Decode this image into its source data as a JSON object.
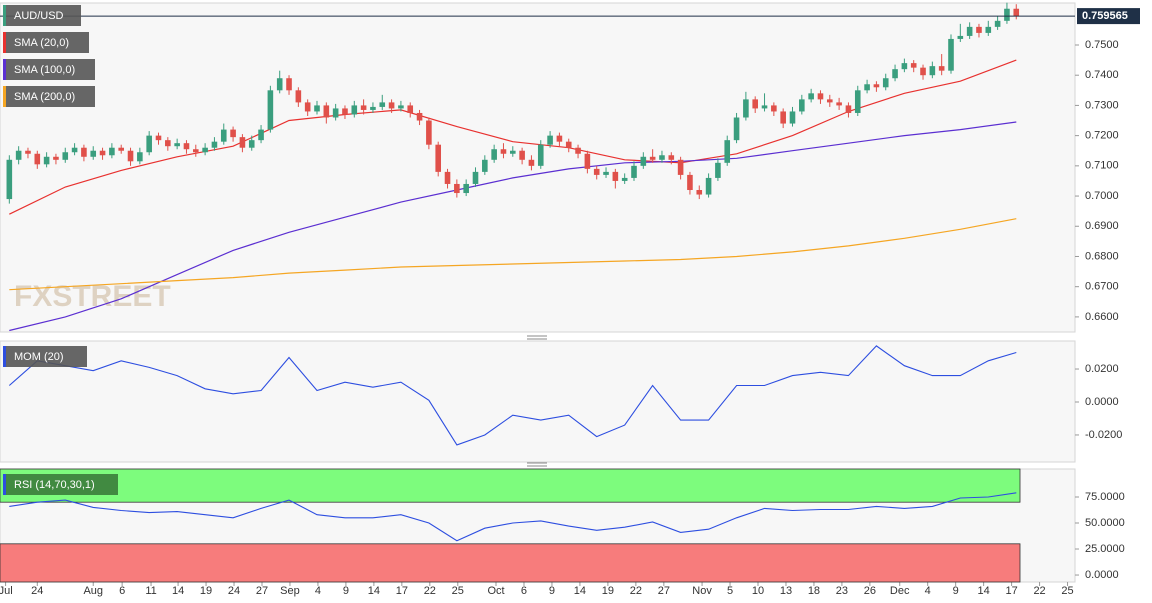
{
  "chart_data": {
    "type": "candlestick",
    "symbol": "AUD/USD",
    "watermark": "FXSTREET",
    "up_color": "#3a9e7e",
    "down_color": "#e0504a",
    "open": [
      0.699,
      0.712,
      0.715,
      0.714,
      0.7105,
      0.713,
      0.712,
      0.7145,
      0.716,
      0.713,
      0.715,
      0.7135,
      0.716,
      0.715,
      0.7115,
      0.7145,
      0.72,
      0.7185,
      0.7165,
      0.7175,
      0.7155,
      0.7145,
      0.716,
      0.718,
      0.722,
      0.7195,
      0.716,
      0.7185,
      0.722,
      0.735,
      0.739,
      0.735,
      0.731,
      0.728,
      0.73,
      0.726,
      0.729,
      0.727,
      0.73,
      0.7285,
      0.7295,
      0.731,
      0.729,
      0.73,
      0.7275,
      0.725,
      0.717,
      0.708,
      0.704,
      0.701,
      0.704,
      0.708,
      0.712,
      0.7155,
      0.714,
      0.715,
      0.712,
      0.71,
      0.717,
      0.72,
      0.718,
      0.716,
      0.714,
      0.709,
      0.707,
      0.708,
      0.705,
      0.706,
      0.71,
      0.713,
      0.712,
      0.7135,
      0.712,
      0.707,
      0.702,
      0.7005,
      0.706,
      0.711,
      0.7185,
      0.726,
      0.732,
      0.729,
      0.73,
      0.728,
      0.724,
      0.728,
      0.732,
      0.734,
      0.732,
      0.731,
      0.73,
      0.7275,
      0.735,
      0.737,
      0.736,
      0.739,
      0.742,
      0.744,
      0.7425,
      0.74,
      0.743,
      0.7415,
      0.752,
      0.753,
      0.756,
      0.754,
      0.756,
      0.758,
      0.762
    ],
    "high": [
      0.7135,
      0.7165,
      0.716,
      0.715,
      0.7145,
      0.714,
      0.716,
      0.7175,
      0.717,
      0.7165,
      0.716,
      0.7175,
      0.717,
      0.716,
      0.716,
      0.7215,
      0.721,
      0.7195,
      0.719,
      0.7185,
      0.717,
      0.7175,
      0.7195,
      0.724,
      0.723,
      0.7205,
      0.72,
      0.7235,
      0.7365,
      0.7415,
      0.74,
      0.736,
      0.732,
      0.7315,
      0.731,
      0.7305,
      0.73,
      0.7315,
      0.732,
      0.731,
      0.7335,
      0.732,
      0.7315,
      0.731,
      0.7285,
      0.726,
      0.718,
      0.709,
      0.7055,
      0.7055,
      0.7095,
      0.7135,
      0.717,
      0.7175,
      0.7165,
      0.716,
      0.7135,
      0.7185,
      0.7215,
      0.721,
      0.719,
      0.717,
      0.715,
      0.71,
      0.7095,
      0.709,
      0.7075,
      0.7115,
      0.7145,
      0.7155,
      0.715,
      0.7145,
      0.713,
      0.708,
      0.7035,
      0.7075,
      0.7125,
      0.72,
      0.7275,
      0.7345,
      0.733,
      0.734,
      0.731,
      0.729,
      0.7295,
      0.7335,
      0.7355,
      0.735,
      0.7335,
      0.7325,
      0.731,
      0.7365,
      0.7385,
      0.738,
      0.7405,
      0.7435,
      0.7455,
      0.745,
      0.7435,
      0.7445,
      0.747,
      0.7535,
      0.757,
      0.7575,
      0.757,
      0.758,
      0.7595,
      0.764,
      0.7635
    ],
    "low": [
      0.6975,
      0.7105,
      0.7125,
      0.709,
      0.7095,
      0.7105,
      0.711,
      0.7135,
      0.7115,
      0.712,
      0.712,
      0.7125,
      0.714,
      0.71,
      0.7105,
      0.7135,
      0.717,
      0.715,
      0.7155,
      0.714,
      0.713,
      0.7135,
      0.715,
      0.717,
      0.718,
      0.7145,
      0.715,
      0.7175,
      0.721,
      0.734,
      0.7335,
      0.7295,
      0.7265,
      0.727,
      0.724,
      0.725,
      0.7255,
      0.726,
      0.727,
      0.7275,
      0.7285,
      0.7275,
      0.728,
      0.726,
      0.7235,
      0.7155,
      0.7065,
      0.7025,
      0.6995,
      0.7,
      0.703,
      0.707,
      0.711,
      0.7125,
      0.713,
      0.7105,
      0.7085,
      0.709,
      0.716,
      0.7165,
      0.7145,
      0.7125,
      0.7075,
      0.7055,
      0.706,
      0.7025,
      0.704,
      0.705,
      0.709,
      0.711,
      0.711,
      0.7105,
      0.7055,
      0.7005,
      0.699,
      0.6995,
      0.705,
      0.71,
      0.7175,
      0.725,
      0.7275,
      0.728,
      0.7265,
      0.7225,
      0.723,
      0.727,
      0.731,
      0.7305,
      0.7295,
      0.7285,
      0.726,
      0.7265,
      0.734,
      0.7345,
      0.735,
      0.738,
      0.741,
      0.741,
      0.7385,
      0.739,
      0.74,
      0.7405,
      0.751,
      0.752,
      0.7525,
      0.753,
      0.755,
      0.757,
      0.7585
    ],
    "close": [
      0.712,
      0.715,
      0.714,
      0.7105,
      0.713,
      0.712,
      0.7145,
      0.716,
      0.713,
      0.715,
      0.7135,
      0.716,
      0.715,
      0.7115,
      0.7145,
      0.72,
      0.7185,
      0.7165,
      0.7175,
      0.7155,
      0.7145,
      0.716,
      0.718,
      0.722,
      0.7195,
      0.716,
      0.7185,
      0.722,
      0.735,
      0.739,
      0.735,
      0.731,
      0.728,
      0.73,
      0.726,
      0.729,
      0.727,
      0.73,
      0.7285,
      0.7295,
      0.731,
      0.729,
      0.73,
      0.7275,
      0.725,
      0.717,
      0.708,
      0.704,
      0.701,
      0.704,
      0.708,
      0.712,
      0.7155,
      0.714,
      0.715,
      0.712,
      0.71,
      0.717,
      0.72,
      0.718,
      0.716,
      0.714,
      0.709,
      0.707,
      0.708,
      0.705,
      0.706,
      0.71,
      0.713,
      0.712,
      0.7135,
      0.712,
      0.707,
      0.702,
      0.7005,
      0.706,
      0.711,
      0.7185,
      0.726,
      0.732,
      0.729,
      0.73,
      0.728,
      0.724,
      0.728,
      0.732,
      0.734,
      0.732,
      0.731,
      0.73,
      0.7275,
      0.735,
      0.737,
      0.736,
      0.739,
      0.742,
      0.744,
      0.7425,
      0.74,
      0.743,
      0.7415,
      0.752,
      0.753,
      0.756,
      0.754,
      0.756,
      0.758,
      0.762,
      0.7596
    ],
    "last_price": {
      "value": 0.759565,
      "label": "0.759565"
    },
    "xlim": [
      -1,
      114.3
    ],
    "ylim": [
      0.655,
      0.7639
    ],
    "yticks": [
      {
        "value": 0.66,
        "label": "0.6600"
      },
      {
        "value": 0.67,
        "label": "0.6700"
      },
      {
        "value": 0.68,
        "label": "0.6800"
      },
      {
        "value": 0.69,
        "label": "0.6900"
      },
      {
        "value": 0.7,
        "label": "0.7000"
      },
      {
        "value": 0.71,
        "label": "0.7100"
      },
      {
        "value": 0.72,
        "label": "0.7200"
      },
      {
        "value": 0.73,
        "label": "0.7300"
      },
      {
        "value": 0.74,
        "label": "0.7400"
      },
      {
        "value": 0.75,
        "label": "0.7500"
      }
    ],
    "xticks": [
      {
        "value": -0.4,
        "label": "Jul"
      },
      {
        "value": 3,
        "label": "24"
      },
      {
        "value": 9,
        "label": "Aug"
      },
      {
        "value": 12.1,
        "label": "6"
      },
      {
        "value": 15.2,
        "label": "11"
      },
      {
        "value": 18.1,
        "label": "14"
      },
      {
        "value": 21.1,
        "label": "19"
      },
      {
        "value": 24.1,
        "label": "24"
      },
      {
        "value": 27.1,
        "label": "27"
      },
      {
        "value": 30.1,
        "label": "Sep"
      },
      {
        "value": 33.1,
        "label": "4"
      },
      {
        "value": 36.1,
        "label": "9"
      },
      {
        "value": 39.1,
        "label": "14"
      },
      {
        "value": 42.1,
        "label": "17"
      },
      {
        "value": 45.1,
        "label": "22"
      },
      {
        "value": 48.1,
        "label": "25"
      },
      {
        "value": 52.2,
        "label": "Oct"
      },
      {
        "value": 55.2,
        "label": "6"
      },
      {
        "value": 58.2,
        "label": "9"
      },
      {
        "value": 61.2,
        "label": "14"
      },
      {
        "value": 64.2,
        "label": "19"
      },
      {
        "value": 67.2,
        "label": "22"
      },
      {
        "value": 70.2,
        "label": "27"
      },
      {
        "value": 74.3,
        "label": "Nov"
      },
      {
        "value": 77.3,
        "label": "5"
      },
      {
        "value": 80.3,
        "label": "10"
      },
      {
        "value": 83.3,
        "label": "13"
      },
      {
        "value": 86.3,
        "label": "18"
      },
      {
        "value": 89.3,
        "label": "23"
      },
      {
        "value": 92.3,
        "label": "26"
      },
      {
        "value": 95.5,
        "label": "Dec"
      },
      {
        "value": 98.5,
        "label": "4"
      },
      {
        "value": 101.5,
        "label": "9"
      },
      {
        "value": 104.5,
        "label": "14"
      },
      {
        "value": 107.5,
        "label": "17"
      },
      {
        "value": 110.5,
        "label": "22"
      },
      {
        "value": 113.5,
        "label": "25"
      }
    ],
    "overlays": [
      {
        "name": "SMA (20,0)",
        "color": "#e8312f",
        "x": [
          0,
          6,
          12,
          18,
          24,
          30,
          36,
          42,
          48,
          54,
          60,
          66,
          72,
          78,
          84,
          90,
          96,
          102,
          108
        ],
        "values": [
          0.694,
          0.703,
          0.7085,
          0.713,
          0.7165,
          0.725,
          0.727,
          0.7285,
          0.723,
          0.718,
          0.716,
          0.712,
          0.711,
          0.714,
          0.72,
          0.728,
          0.734,
          0.738,
          0.745
        ]
      },
      {
        "name": "SMA (100,0)",
        "color": "#5b2fd1",
        "x": [
          0,
          6,
          12,
          18,
          24,
          30,
          36,
          42,
          48,
          54,
          60,
          66,
          72,
          78,
          84,
          90,
          96,
          102,
          108
        ],
        "values": [
          0.6555,
          0.66,
          0.666,
          0.674,
          0.682,
          0.688,
          0.693,
          0.698,
          0.702,
          0.706,
          0.709,
          0.711,
          0.7115,
          0.7125,
          0.715,
          0.7175,
          0.72,
          0.722,
          0.7245
        ]
      },
      {
        "name": "SMA (200,0)",
        "color": "#f5a623",
        "x": [
          0,
          6,
          12,
          18,
          24,
          30,
          36,
          42,
          48,
          54,
          60,
          66,
          72,
          78,
          84,
          90,
          96,
          102,
          108
        ],
        "values": [
          0.669,
          0.67,
          0.671,
          0.672,
          0.673,
          0.6745,
          0.6755,
          0.6765,
          0.677,
          0.6775,
          0.678,
          0.6785,
          0.679,
          0.68,
          0.6815,
          0.6835,
          0.686,
          0.689,
          0.6925
        ]
      }
    ],
    "panels": [
      {
        "type": "line",
        "name": "MOM (20)",
        "color": "#2d4ee0",
        "box_color": "#555555",
        "x": [
          0,
          3,
          6,
          9,
          12,
          15,
          18,
          21,
          24,
          27,
          30,
          33,
          36,
          39,
          42,
          45,
          48,
          51,
          54,
          57,
          60,
          63,
          66,
          69,
          72,
          75,
          78,
          81,
          84,
          87,
          90,
          93,
          96,
          99,
          102,
          105,
          108
        ],
        "values": [
          0.01,
          0.025,
          0.022,
          0.019,
          0.025,
          0.021,
          0.016,
          0.008,
          0.005,
          0.007,
          0.027,
          0.007,
          0.012,
          0.009,
          0.012,
          0.001,
          -0.026,
          -0.02,
          -0.008,
          -0.011,
          -0.008,
          -0.021,
          -0.014,
          0.01,
          -0.011,
          -0.011,
          0.01,
          0.01,
          0.016,
          0.018,
          0.016,
          0.034,
          0.022,
          0.016,
          0.016,
          0.025,
          0.03
        ],
        "ylim": [
          -0.0364,
          0.037
        ],
        "yticks": [
          {
            "value": -0.02,
            "label": "-0.0200"
          },
          {
            "value": 0,
            "label": "0.0000"
          },
          {
            "value": 0.02,
            "label": "0.0200"
          }
        ]
      },
      {
        "type": "line",
        "name": "RSI (14,70,30,1)",
        "color": "#2d4ee0",
        "box_color": "#3b7d3b",
        "x": [
          0,
          3,
          6,
          9,
          12,
          15,
          18,
          21,
          24,
          27,
          30,
          33,
          36,
          39,
          42,
          45,
          48,
          51,
          54,
          57,
          60,
          63,
          66,
          69,
          72,
          75,
          78,
          81,
          84,
          87,
          90,
          93,
          96,
          99,
          102,
          105,
          108
        ],
        "values": [
          66,
          70,
          72,
          65,
          62,
          60,
          61,
          58,
          55,
          64,
          72,
          58,
          55,
          55,
          58,
          50,
          33,
          45,
          50,
          52,
          47,
          43,
          46,
          51,
          41,
          44,
          55,
          64,
          62,
          63,
          63,
          66,
          64,
          66,
          74,
          75,
          79
        ],
        "ylim": [
          -6.7,
          101.9
        ],
        "overbought": 70,
        "oversold": 30,
        "overbought_color": "#7dfc7d",
        "oversold_color": "#f77c7c",
        "yticks": [
          {
            "value": 0,
            "label": "0.0000"
          },
          {
            "value": 25,
            "label": "25.0000"
          },
          {
            "value": 50,
            "label": "50.0000"
          },
          {
            "value": 75,
            "label": "75.0000"
          }
        ]
      }
    ]
  }
}
